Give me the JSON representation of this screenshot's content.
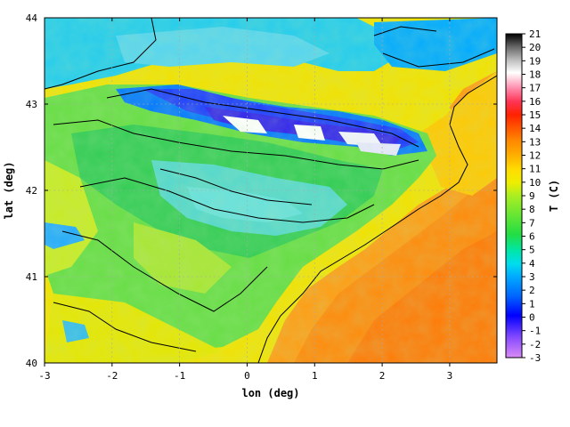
{
  "chart_data": {
    "type": "heatmap",
    "title": "",
    "xlabel": "lon (deg)",
    "ylabel": "lat (deg)",
    "xlim": [
      -3,
      3.7
    ],
    "ylim": [
      40,
      44
    ],
    "x_ticks": [
      -3,
      -2,
      -1,
      0,
      1,
      2,
      3
    ],
    "y_ticks": [
      40,
      41,
      42,
      43,
      44
    ],
    "grid": true,
    "colorbar": {
      "label": "T (C)",
      "min": -3,
      "max": 21,
      "ticks": [
        -3,
        -2,
        -1,
        0,
        1,
        2,
        3,
        4,
        5,
        6,
        7,
        8,
        9,
        10,
        11,
        12,
        13,
        14,
        15,
        16,
        17,
        18,
        19,
        20,
        21
      ],
      "placement": "right"
    },
    "colors": {
      "cold": "#cc66ff",
      "zero": "#0000ff",
      "cool": "#00ccff",
      "mild": "#33dd66",
      "warm": "#ffdd00",
      "hot": "#ff6600",
      "hottest": "#ff0000",
      "top": "#ffffff",
      "contour": "#000000"
    }
  }
}
